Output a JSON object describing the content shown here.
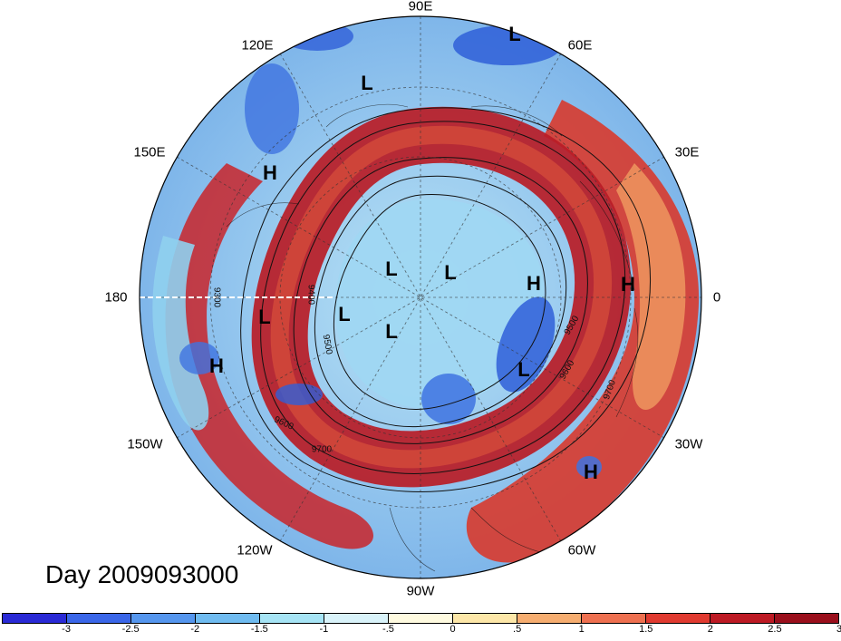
{
  "title": "Day 2009093000",
  "longitude_labels": {
    "lon_90E": "90E",
    "lon_120E": "120E",
    "lon_60E": "60E",
    "lon_150E": "150E",
    "lon_30E": "30E",
    "lon_180": "180",
    "lon_0": "0",
    "lon_150W": "150W",
    "lon_30W": "30W",
    "lon_120W": "120W",
    "lon_60W": "60W",
    "lon_90W": "90W"
  },
  "pressure_centers": [
    "L",
    "L",
    "H",
    "L",
    "L",
    "H",
    "L",
    "L",
    "H",
    "L",
    "H",
    "L",
    "H"
  ],
  "contour_labels": [
    "9300",
    "9400",
    "9500",
    "9600",
    "9700",
    "9500",
    "9600",
    "9700"
  ],
  "colorbar": {
    "colors": [
      "#2a2ad6",
      "#3a66e8",
      "#5596ee",
      "#6fbbf0",
      "#a6e4f5",
      "#d9f3fa",
      "#fffbe0",
      "#fde7a8",
      "#f6ad70",
      "#ee7050",
      "#e03a30",
      "#bd1a24",
      "#9a0f1c"
    ],
    "tick_labels": [
      "-3",
      "-2.5",
      "-2",
      "-1.5",
      "-1",
      "-.5",
      "0",
      ".5",
      "1",
      "1.5",
      "2",
      "2.5",
      "3"
    ]
  }
}
